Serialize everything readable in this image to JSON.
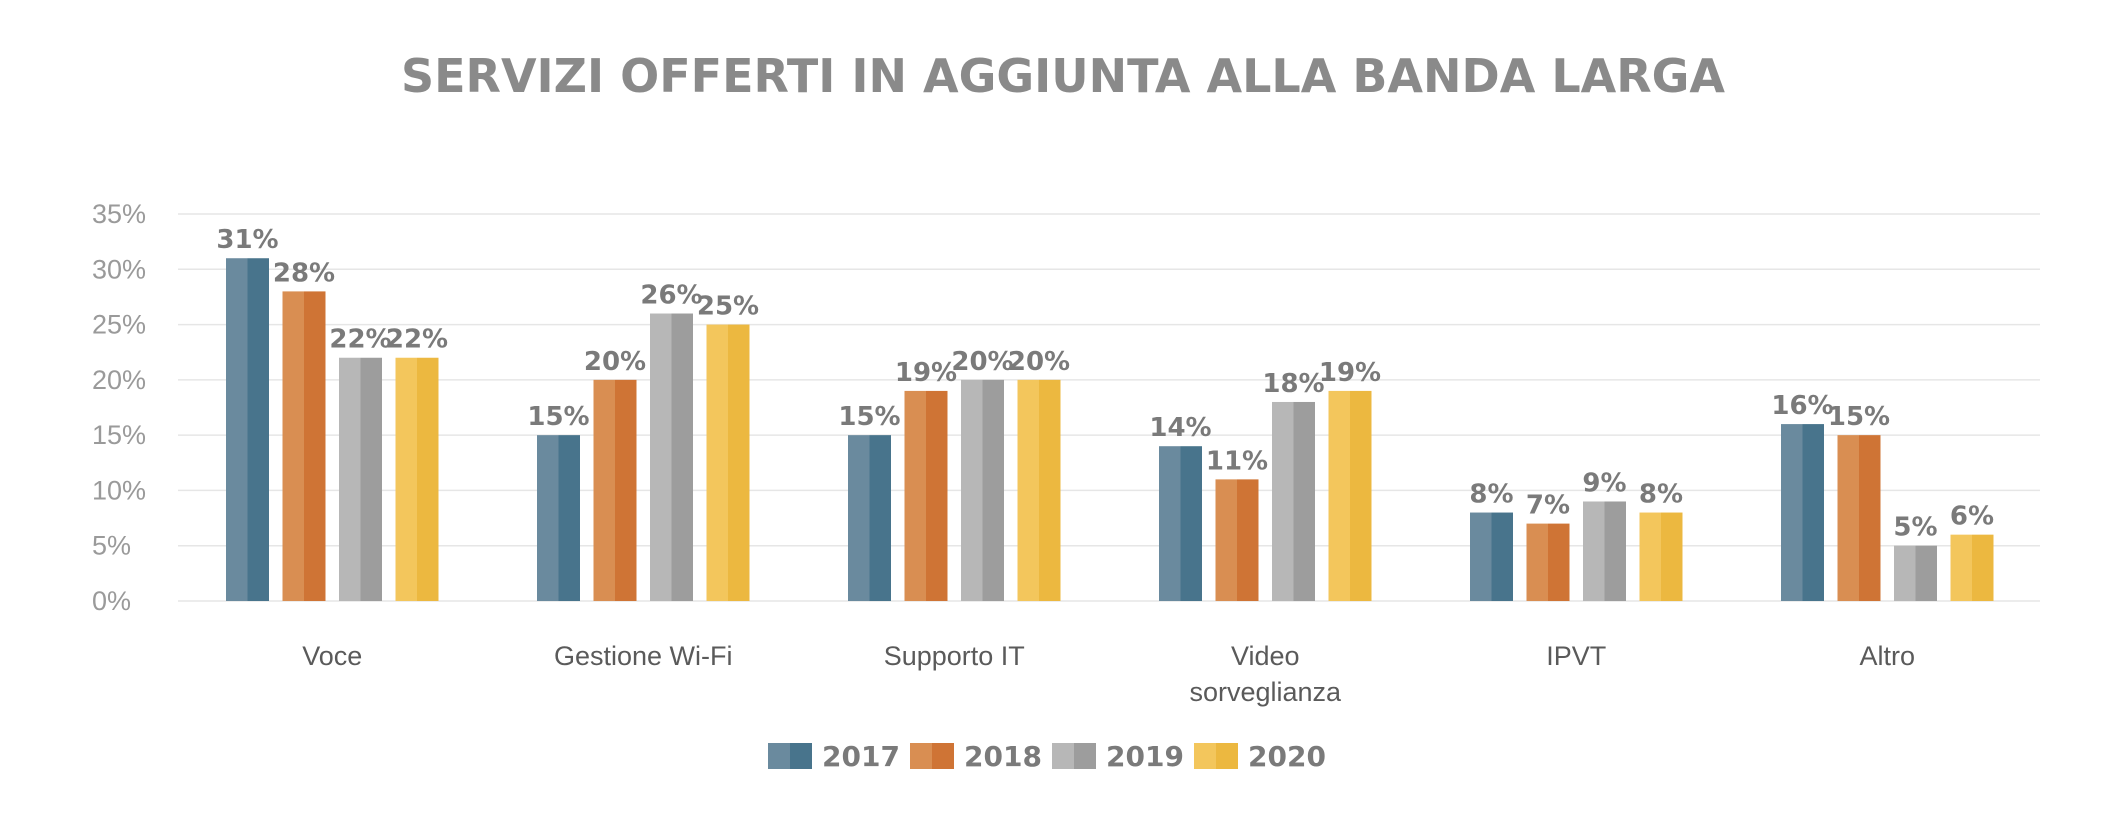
{
  "chart_data": {
    "type": "bar",
    "title": "SERVIZI OFFERTI IN AGGIUNTA ALLA BANDA LARGA",
    "categories": [
      [
        "Voce"
      ],
      [
        "Gestione Wi-Fi"
      ],
      [
        "Supporto IT"
      ],
      [
        "Video",
        "sorveglianza"
      ],
      [
        "IPVT"
      ],
      [
        "Altro"
      ]
    ],
    "series": [
      {
        "name": "2017",
        "values": [
          31,
          15,
          15,
          14,
          8,
          16
        ],
        "labels": [
          "31%",
          "15%",
          "15%",
          "14%",
          "8%",
          "16%"
        ]
      },
      {
        "name": "2018",
        "values": [
          28,
          20,
          19,
          11,
          7,
          15
        ],
        "labels": [
          "28%",
          "20%",
          "19%",
          "11%",
          "7%",
          "15%"
        ]
      },
      {
        "name": "2019",
        "values": [
          22,
          26,
          20,
          18,
          9,
          5
        ],
        "labels": [
          "22%",
          "26%",
          "20%",
          "18%",
          "9%",
          "5%"
        ]
      },
      {
        "name": "2020",
        "values": [
          22,
          25,
          20,
          19,
          8,
          6
        ],
        "labels": [
          "22%",
          "25%",
          "20%",
          "19%",
          "8%",
          "6%"
        ]
      }
    ],
    "ylim": [
      0,
      35
    ],
    "yticks": [
      0,
      5,
      10,
      15,
      20,
      25,
      30,
      35
    ],
    "ytick_labels": [
      "0%",
      "5%",
      "10%",
      "15%",
      "20%",
      "25%",
      "30%",
      "35%"
    ],
    "grid": true,
    "legend_position": "bottom-center"
  },
  "colors": {
    "2017": [
      "#6a8a9e",
      "#48748c"
    ],
    "2018": [
      "#d98e52",
      "#cf7435"
    ],
    "2019": [
      "#b7b7b7",
      "#9d9d9d"
    ],
    "2020": [
      "#f3c65c",
      "#ecb840"
    ]
  }
}
